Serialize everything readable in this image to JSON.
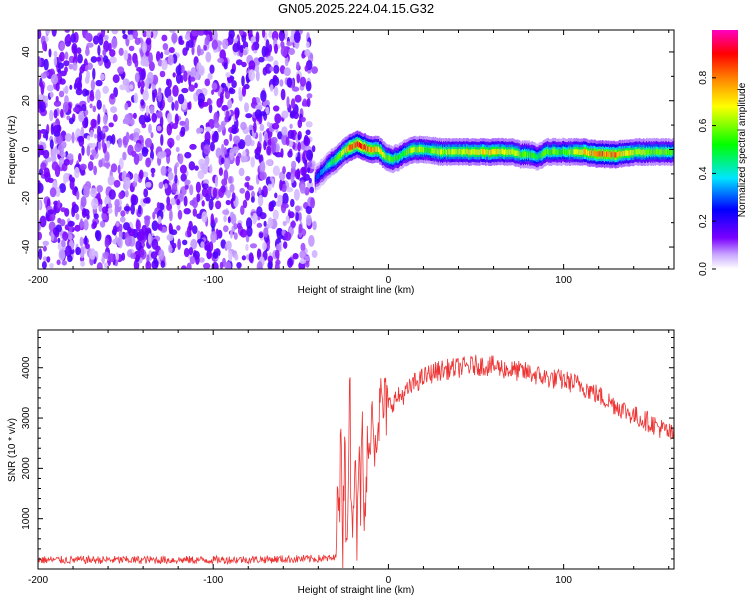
{
  "figure": {
    "title": "GN05.2025.224.04.15.G32"
  },
  "chart_data": [
    {
      "type": "heatmap",
      "title": "GN05.2025.224.04.15.G32",
      "xlabel": "Height of straight line (km)",
      "ylabel": "Frequency (Hz)",
      "xlim": [
        -200,
        163
      ],
      "ylim": [
        -49,
        49
      ],
      "xticks": [
        -200,
        -100,
        0,
        100
      ],
      "yticks": [
        -40,
        -20,
        0,
        20,
        40
      ],
      "colorbar": {
        "label": "Normalized spectral amplitude",
        "range": [
          0,
          1
        ],
        "ticks": [
          "0.0",
          "0.2",
          "0.4",
          "0.6",
          "0.8"
        ],
        "colormap": [
          "#ffffff",
          "#7a00ff",
          "#0000ff",
          "#00e5ff",
          "#00ff00",
          "#ffff00",
          "#ff8000",
          "#ff0000",
          "#ff00c0"
        ]
      },
      "noise_region": {
        "x_from": -200,
        "x_to": -42,
        "frequency_range": [
          -49,
          49
        ],
        "amplitude_range": [
          0.0,
          0.2
        ]
      },
      "signal_track": {
        "x": [
          -42,
          -38,
          -34,
          -30,
          -26,
          -22,
          -18,
          -14,
          -10,
          -6,
          -2,
          2,
          6,
          10,
          14,
          20,
          30,
          40,
          50,
          60,
          70,
          75,
          80,
          85,
          90,
          95,
          100,
          110,
          120,
          130,
          140,
          150,
          163
        ],
        "frequency": [
          -12,
          -9,
          -6,
          -4,
          -1,
          1,
          2,
          1,
          0,
          0,
          -3,
          -4,
          -3,
          -1,
          0,
          0,
          -1,
          -1,
          -1,
          -1,
          -1,
          -2,
          -2,
          -3,
          -1,
          -1,
          -1,
          -1,
          -2,
          -2,
          -1,
          -1,
          -1
        ],
        "peak_amplitude": [
          0.25,
          0.35,
          0.45,
          0.55,
          0.65,
          0.85,
          0.9,
          0.85,
          0.8,
          0.75,
          0.6,
          0.55,
          0.5,
          0.6,
          0.65,
          0.6,
          0.62,
          0.65,
          0.7,
          0.7,
          0.68,
          0.6,
          0.55,
          0.5,
          0.6,
          0.58,
          0.55,
          0.7,
          0.85,
          0.8,
          0.65,
          0.6,
          0.55
        ]
      }
    },
    {
      "type": "line",
      "xlabel": "Height of straight line (km)",
      "ylabel": "SNR (10 * v/v)",
      "xlim": [
        -200,
        163
      ],
      "ylim": [
        0,
        4750
      ],
      "xticks": [
        -200,
        -100,
        0,
        100
      ],
      "yticks": [
        1000,
        2000,
        3000,
        4000
      ],
      "color": "#ee3333",
      "series": [
        {
          "x": [
            -200,
            -150,
            -100,
            -50,
            -30,
            -29,
            -28,
            -27,
            -26,
            -25,
            -24,
            -23,
            -22,
            -21,
            -20,
            -19,
            -18,
            -17,
            -16,
            -15,
            -14,
            -13,
            -12,
            -11,
            -10,
            -8,
            -6,
            -4,
            -2,
            0,
            5,
            10,
            15,
            20,
            25,
            30,
            40,
            50,
            60,
            70,
            80,
            90,
            100,
            110,
            120,
            130,
            140,
            150,
            163
          ],
          "values": [
            180,
            180,
            180,
            200,
            210,
            2500,
            600,
            3200,
            300,
            2900,
            500,
            1800,
            3700,
            400,
            1600,
            2800,
            800,
            2500,
            1200,
            2900,
            700,
            1400,
            2300,
            2000,
            3300,
            2600,
            3000,
            3300,
            3200,
            3250,
            3400,
            3500,
            3700,
            3800,
            3900,
            3950,
            4000,
            4050,
            4030,
            3950,
            3900,
            3800,
            3750,
            3650,
            3450,
            3250,
            3050,
            2900,
            2650
          ]
        }
      ]
    }
  ]
}
